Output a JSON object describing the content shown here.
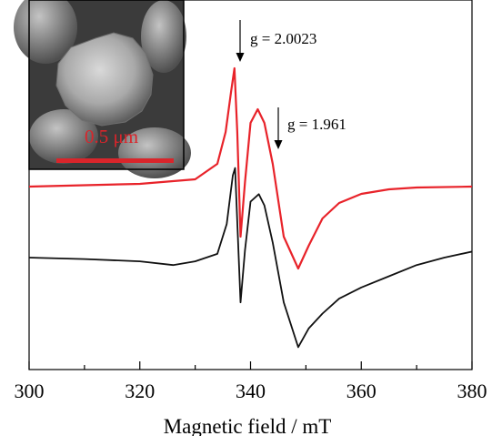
{
  "chart_data": {
    "type": "line",
    "xlabel": "Magnetic field / mT",
    "ylabel": "",
    "xlim": [
      300,
      380
    ],
    "x_ticks": [
      "300",
      "320",
      "340",
      "360",
      "380"
    ],
    "y_ticks_shown": false,
    "grid": false,
    "series": [
      {
        "color": "#e8232a",
        "x": [
          300,
          320,
          330,
          334,
          335.5,
          336.5,
          337.1,
          337.6,
          338.2,
          339,
          340,
          341.3,
          342.5,
          344,
          346,
          348.6,
          350.5,
          353,
          356,
          360,
          365,
          370,
          380
        ],
        "y": [
          0.0,
          0.03,
          0.08,
          0.25,
          0.6,
          1.05,
          1.3,
          0.6,
          -0.55,
          0.05,
          0.7,
          0.85,
          0.7,
          0.25,
          -0.55,
          -0.9,
          -0.65,
          -0.35,
          -0.18,
          -0.08,
          -0.03,
          -0.01,
          0.0
        ]
      },
      {
        "color": "#111111",
        "x": [
          300,
          310,
          320,
          326,
          330,
          334,
          335.7,
          336.8,
          337.2,
          337.7,
          338.2,
          339,
          340,
          341.5,
          342.5,
          344,
          346,
          348.6,
          350.5,
          353,
          356,
          360,
          365,
          370,
          375,
          380
        ],
        "y": [
          0.0,
          -0.02,
          -0.05,
          -0.1,
          -0.05,
          0.05,
          0.45,
          1.1,
          1.2,
          0.3,
          -0.6,
          0.1,
          0.75,
          0.85,
          0.7,
          0.2,
          -0.6,
          -1.2,
          -0.95,
          -0.75,
          -0.55,
          -0.4,
          -0.25,
          -0.1,
          0.0,
          0.08
        ]
      }
    ],
    "annotations": [
      {
        "text": "g = 2.0023",
        "x": 337.2
      },
      {
        "text": "g = 1.961",
        "x": 344.8
      }
    ],
    "inset": {
      "kind": "SEM micrograph",
      "scalebar_label": "0.5 μm",
      "scalebar_color": "#d9252b"
    }
  }
}
